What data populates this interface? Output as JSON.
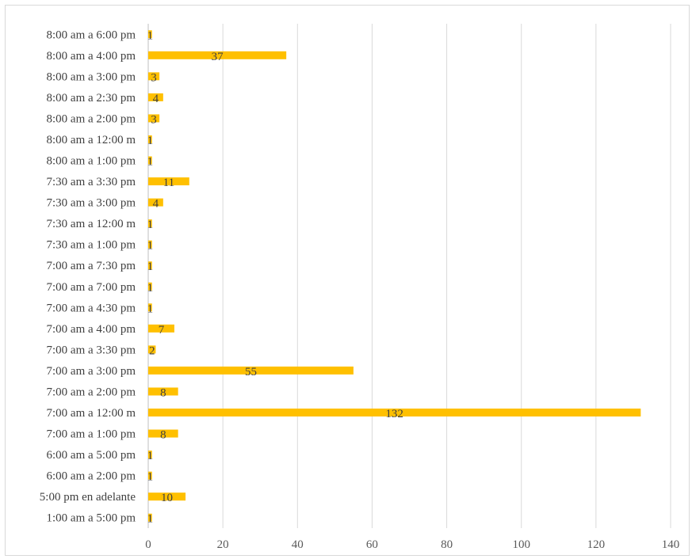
{
  "chart_data": {
    "type": "bar",
    "orientation": "horizontal",
    "categories": [
      "8:00 am a 6:00 pm",
      "8:00 am a 4:00 pm",
      "8:00 am a 3:00 pm",
      "8:00 am a 2:30 pm",
      "8:00 am a 2:00 pm",
      "8:00 am a 12:00 m",
      "8:00 am a 1:00 pm",
      "7:30 am a 3:30 pm",
      "7:30 am a 3:00 pm",
      "7:30 am a 12:00 m",
      "7:30 am a 1:00 pm",
      "7:00 am a 7:30 pm",
      "7:00 am a 7:00 pm",
      "7:00 am a 4:30 pm",
      "7:00 am a 4:00 pm",
      "7:00 am a 3:30 pm",
      "7:00 am a 3:00 pm",
      "7:00 am a 2:00 pm",
      "7:00 am a 12:00 m",
      "7:00 am a 1:00 pm",
      "6:00 am a 5:00 pm",
      "6:00 am a 2:00 pm",
      "5:00 pm en adelante",
      "1:00 am a 5:00 pm"
    ],
    "values": [
      1,
      37,
      3,
      4,
      3,
      1,
      1,
      11,
      4,
      1,
      1,
      1,
      1,
      1,
      7,
      2,
      55,
      8,
      132,
      8,
      1,
      1,
      10,
      1
    ],
    "xlim": [
      0,
      140
    ],
    "xticks": [
      0,
      20,
      40,
      60,
      80,
      100,
      120,
      140
    ],
    "grid": true,
    "legend": "none",
    "bar_color": "#FFC000",
    "grid_color": "#d9d9d9"
  }
}
